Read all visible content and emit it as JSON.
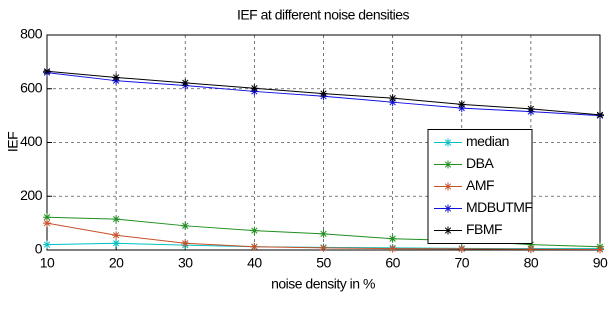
{
  "chart_data": {
    "type": "line",
    "title": "IEF at different noise densities",
    "x_label": "noise density in %",
    "y_label": "IEF",
    "x": [
      10,
      20,
      30,
      40,
      50,
      60,
      70,
      80,
      90
    ],
    "series": [
      {
        "name": "median",
        "color": "#00c0c0",
        "values": [
          20,
          25,
          18,
          12,
          10,
          8,
          6,
          5,
          5
        ]
      },
      {
        "name": "DBA",
        "color": "#1f8f1f",
        "values": [
          122,
          115,
          90,
          72,
          60,
          42,
          35,
          20,
          12
        ]
      },
      {
        "name": "AMF",
        "color": "#c8502a",
        "values": [
          100,
          55,
          25,
          12,
          8,
          5,
          4,
          3,
          2
        ]
      },
      {
        "name": "MDBUTMF",
        "color": "#1010e0",
        "values": [
          660,
          630,
          612,
          590,
          572,
          550,
          528,
          515,
          500
        ]
      },
      {
        "name": "FBMF",
        "color": "#000000",
        "values": [
          665,
          642,
          622,
          602,
          582,
          565,
          542,
          525,
          503
        ]
      }
    ],
    "xlim": [
      10,
      90
    ],
    "xticks": [
      10,
      20,
      30,
      40,
      50,
      60,
      70,
      80,
      90
    ],
    "ylim": [
      0,
      800
    ],
    "yticks": [
      0,
      200,
      400,
      600,
      800
    ],
    "grid": true,
    "legend": "east"
  }
}
